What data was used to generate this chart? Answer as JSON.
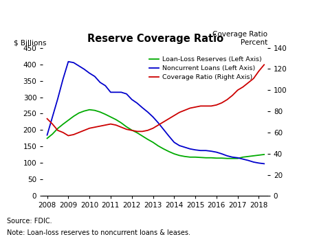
{
  "title": "Reserve Coverage Ratio",
  "left_ylabel": "$ Billions",
  "right_ylabel_line1": "Coverage Ratio",
  "right_ylabel_line2": "Percent",
  "source_text": "Source: FDIC.",
  "note_text": "Note: Loan-loss reserves to noncurrent loans & leases.",
  "xlim": [
    2007.8,
    2018.4
  ],
  "left_ylim": [
    0,
    450
  ],
  "right_ylim": [
    0,
    140
  ],
  "left_yticks": [
    0,
    50,
    100,
    150,
    200,
    250,
    300,
    350,
    400,
    450
  ],
  "right_yticks": [
    0,
    20,
    40,
    60,
    80,
    100,
    120,
    140
  ],
  "xticks": [
    2008,
    2009,
    2010,
    2011,
    2012,
    2013,
    2014,
    2015,
    2016,
    2017,
    2018
  ],
  "loan_loss_reserves": {
    "label": "Loan-Loss Reserves (Left Axis)",
    "color": "#00AA00",
    "x": [
      2008.0,
      2008.25,
      2008.5,
      2008.75,
      2009.0,
      2009.25,
      2009.5,
      2009.75,
      2010.0,
      2010.25,
      2010.5,
      2010.75,
      2011.0,
      2011.25,
      2011.5,
      2011.75,
      2012.0,
      2012.25,
      2012.5,
      2012.75,
      2013.0,
      2013.25,
      2013.5,
      2013.75,
      2014.0,
      2014.25,
      2014.5,
      2014.75,
      2015.0,
      2015.25,
      2015.5,
      2015.75,
      2016.0,
      2016.25,
      2016.5,
      2016.75,
      2017.0,
      2017.25,
      2017.5,
      2017.75,
      2018.0,
      2018.25
    ],
    "y": [
      175,
      188,
      205,
      218,
      230,
      242,
      252,
      258,
      262,
      260,
      255,
      248,
      240,
      232,
      222,
      210,
      200,
      192,
      182,
      172,
      163,
      152,
      143,
      135,
      128,
      123,
      120,
      118,
      118,
      117,
      116,
      116,
      115,
      115,
      114,
      114,
      114,
      118,
      120,
      122,
      124,
      126
    ]
  },
  "noncurrent_loans": {
    "label": "Noncurrent Loans (Left Axis)",
    "color": "#0000CC",
    "x": [
      2008.0,
      2008.25,
      2008.5,
      2008.75,
      2009.0,
      2009.25,
      2009.5,
      2009.75,
      2010.0,
      2010.25,
      2010.5,
      2010.75,
      2011.0,
      2011.25,
      2011.5,
      2011.75,
      2012.0,
      2012.25,
      2012.5,
      2012.75,
      2013.0,
      2013.25,
      2013.5,
      2013.75,
      2014.0,
      2014.25,
      2014.5,
      2014.75,
      2015.0,
      2015.25,
      2015.5,
      2015.75,
      2016.0,
      2016.25,
      2016.5,
      2016.75,
      2017.0,
      2017.25,
      2017.5,
      2017.75,
      2018.0,
      2018.25
    ],
    "y": [
      185,
      240,
      295,
      355,
      408,
      405,
      395,
      385,
      373,
      363,
      345,
      335,
      315,
      315,
      315,
      310,
      293,
      282,
      268,
      255,
      240,
      222,
      202,
      182,
      163,
      153,
      148,
      143,
      140,
      138,
      138,
      136,
      133,
      128,
      122,
      118,
      116,
      112,
      108,
      103,
      100,
      98
    ]
  },
  "coverage_ratio": {
    "label": "Coverage Ratio (Right Axis)",
    "color": "#CC0000",
    "x": [
      2008.0,
      2008.25,
      2008.5,
      2008.75,
      2009.0,
      2009.25,
      2009.5,
      2009.75,
      2010.0,
      2010.25,
      2010.5,
      2010.75,
      2011.0,
      2011.25,
      2011.5,
      2011.75,
      2012.0,
      2012.25,
      2012.5,
      2012.75,
      2013.0,
      2013.25,
      2013.5,
      2013.75,
      2014.0,
      2014.25,
      2014.5,
      2014.75,
      2015.0,
      2015.25,
      2015.5,
      2015.75,
      2016.0,
      2016.25,
      2016.5,
      2016.75,
      2017.0,
      2017.25,
      2017.5,
      2017.75,
      2018.0,
      2018.25
    ],
    "y": [
      73,
      68,
      62,
      60,
      57,
      58,
      60,
      62,
      64,
      65,
      66,
      67,
      68,
      67,
      65,
      63,
      62,
      61,
      61,
      62,
      64,
      67,
      70,
      73,
      76,
      79,
      81,
      83,
      84,
      85,
      85,
      85,
      86,
      88,
      91,
      95,
      100,
      103,
      107,
      111,
      118,
      124
    ]
  }
}
